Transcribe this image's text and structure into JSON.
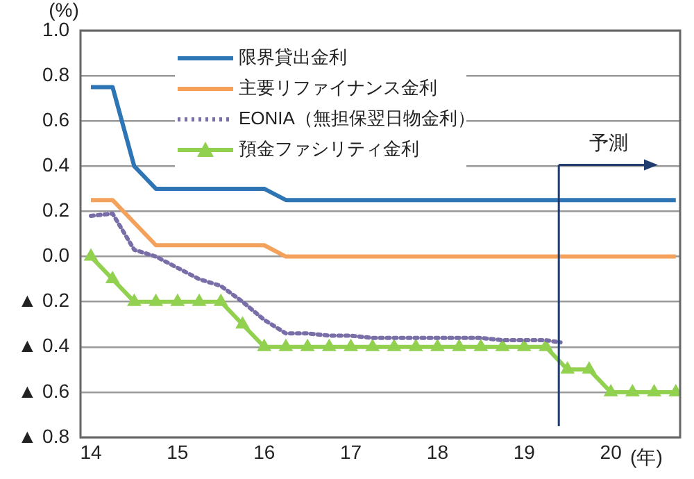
{
  "chart_data": {
    "type": "line",
    "xlabel": "(年)",
    "ylabel": "(%)",
    "x": [
      14,
      14.25,
      14.5,
      14.75,
      15,
      15.25,
      15.5,
      15.75,
      16,
      16.25,
      16.5,
      16.75,
      17,
      17.25,
      17.5,
      17.75,
      18,
      18.25,
      18.5,
      18.75,
      19,
      19.25,
      19.5,
      19.75,
      20,
      20.25,
      20.5,
      20.75
    ],
    "series": [
      {
        "name": "限界貸出金利",
        "color": "#2e75b6",
        "marker": "none",
        "line_style": "solid",
        "values": [
          0.75,
          0.75,
          0.4,
          0.3,
          0.3,
          0.3,
          0.3,
          0.3,
          0.3,
          0.25,
          0.25,
          0.25,
          0.25,
          0.25,
          0.25,
          0.25,
          0.25,
          0.25,
          0.25,
          0.25,
          0.25,
          0.25,
          0.25,
          0.25,
          0.25,
          0.25,
          0.25,
          0.25
        ]
      },
      {
        "name": "主要リファイナンス金利",
        "color": "#f4a25b",
        "marker": "none",
        "line_style": "solid",
        "values": [
          0.25,
          0.25,
          0.15,
          0.05,
          0.05,
          0.05,
          0.05,
          0.05,
          0.05,
          0,
          0,
          0,
          0,
          0,
          0,
          0,
          0,
          0,
          0,
          0,
          0,
          0,
          0,
          0,
          0,
          0,
          0,
          0
        ]
      },
      {
        "name": "EONIA（無担保翌日物金利）",
        "color": "#7a6ea8",
        "marker": "none",
        "line_style": "dotted",
        "x": [
          14,
          14.25,
          14.5,
          14.75,
          15,
          15.25,
          15.5,
          15.75,
          16,
          16.25,
          16.5,
          16.75,
          17,
          17.25,
          17.5,
          17.75,
          18,
          18.25,
          18.5,
          18.75,
          19,
          19.25,
          19.42
        ],
        "values": [
          0.18,
          0.19,
          0.03,
          0,
          -0.05,
          -0.1,
          -0.13,
          -0.2,
          -0.28,
          -0.34,
          -0.34,
          -0.35,
          -0.35,
          -0.36,
          -0.36,
          -0.36,
          -0.36,
          -0.36,
          -0.36,
          -0.37,
          -0.37,
          -0.37,
          -0.38
        ]
      },
      {
        "name": "預金ファシリティ金利",
        "color": "#92d050",
        "marker": "triangle",
        "line_style": "solid",
        "values": [
          0,
          -0.1,
          -0.2,
          -0.2,
          -0.2,
          -0.2,
          -0.2,
          -0.3,
          -0.4,
          -0.4,
          -0.4,
          -0.4,
          -0.4,
          -0.4,
          -0.4,
          -0.4,
          -0.4,
          -0.4,
          -0.4,
          -0.4,
          -0.4,
          -0.4,
          -0.5,
          -0.5,
          -0.6,
          -0.6,
          -0.6,
          -0.6
        ]
      }
    ],
    "xlim": [
      13.88,
      20.8
    ],
    "xticks": [
      14,
      15,
      16,
      17,
      18,
      19,
      20
    ],
    "ylim": [
      -0.8,
      1
    ],
    "yticks": [
      {
        "value": 1,
        "label": "1.0"
      },
      {
        "value": 0.8,
        "label": "0.8"
      },
      {
        "value": 0.6,
        "label": "0.6"
      },
      {
        "value": 0.4,
        "label": "0.4"
      },
      {
        "value": 0.2,
        "label": "0.2"
      },
      {
        "value": 0,
        "label": "0.0"
      },
      {
        "value": -0.2,
        "label": "▲ 0.2"
      },
      {
        "value": -0.4,
        "label": "▲ 0.4"
      },
      {
        "value": -0.6,
        "label": "▲ 0.6"
      },
      {
        "value": -0.8,
        "label": "▲ 0.8"
      }
    ],
    "ref_lines": [
      {
        "axis": "x",
        "value": 19.4,
        "label": "予測",
        "color": "#1f3d6e"
      }
    ],
    "grid": "y",
    "legend": "top left"
  }
}
